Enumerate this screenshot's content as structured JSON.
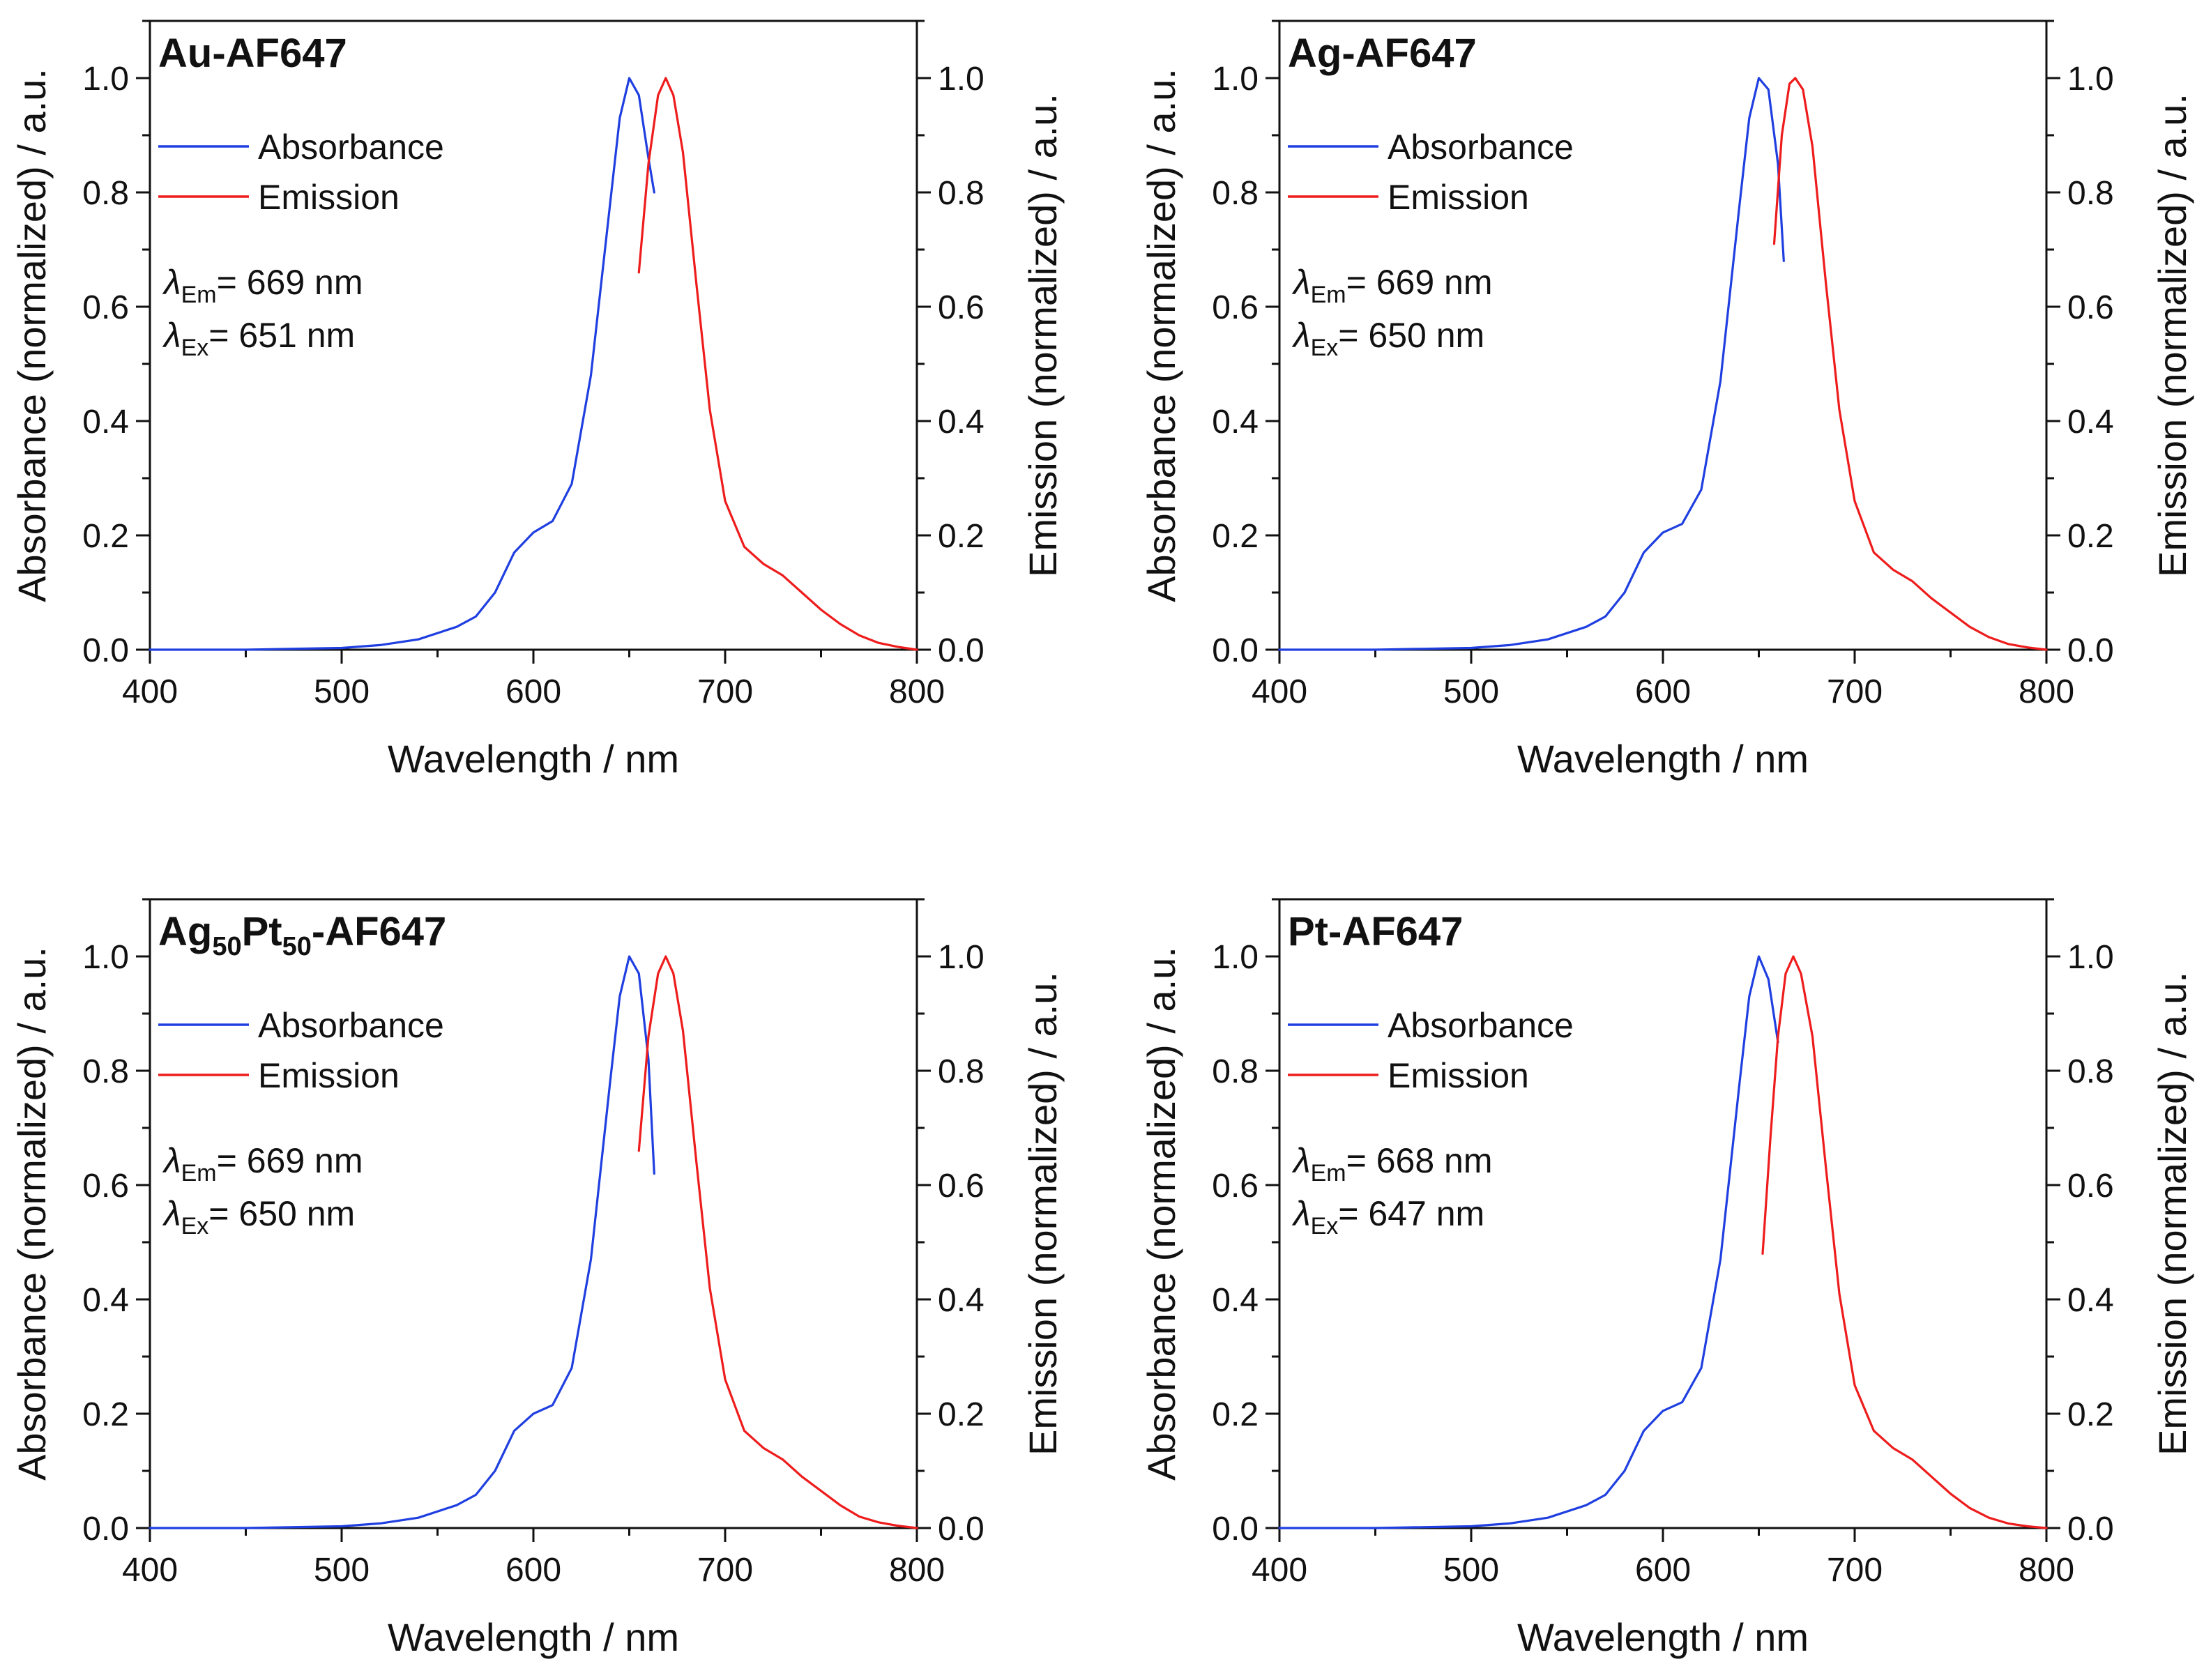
{
  "colors": {
    "absorbance": "#1f3fe0",
    "emission": "#ee1c1c"
  },
  "chart_data": [
    {
      "type": "line",
      "title": "Au-AF647",
      "title_sub": "",
      "xlabel": "Wavelength / nm",
      "ylabel": "Absorbance (normalized) / a.u.",
      "ylabel_right": "Emission (normalized) / a.u.",
      "xlim": [
        400,
        800
      ],
      "ylim": [
        0,
        1.1
      ],
      "x_ticks": [
        "400",
        "500",
        "600",
        "700",
        "800"
      ],
      "y_ticks": [
        "0.0",
        "0.2",
        "0.4",
        "0.6",
        "0.8",
        "1.0"
      ],
      "legend": [
        "Absorbance",
        "Emission"
      ],
      "legend_position": "top-left",
      "annotation": {
        "em_symbol": "λ",
        "em_sub": "Em",
        "em_value": "= 669 nm",
        "ex_symbol": "λ",
        "ex_sub": "Ex",
        "ex_value": "= 651 nm"
      },
      "series": [
        {
          "name": "Absorbance",
          "axis": "left",
          "x": [
            400,
            450,
            500,
            520,
            540,
            560,
            570,
            580,
            590,
            600,
            610,
            620,
            630,
            640,
            645,
            650,
            655,
            660,
            663
          ],
          "y": [
            0.0,
            0.0,
            0.003,
            0.008,
            0.018,
            0.04,
            0.058,
            0.1,
            0.17,
            0.205,
            0.225,
            0.29,
            0.48,
            0.78,
            0.93,
            1.0,
            0.97,
            0.86,
            0.8
          ]
        },
        {
          "name": "Emission",
          "axis": "right",
          "x": [
            655,
            660,
            665,
            669,
            673,
            678,
            685,
            692,
            700,
            710,
            720,
            730,
            740,
            750,
            760,
            770,
            780,
            790,
            800
          ],
          "y": [
            0.66,
            0.85,
            0.97,
            1.0,
            0.97,
            0.87,
            0.64,
            0.42,
            0.26,
            0.18,
            0.15,
            0.13,
            0.1,
            0.07,
            0.045,
            0.025,
            0.012,
            0.005,
            0.0
          ]
        }
      ]
    },
    {
      "type": "line",
      "title": "Ag-AF647",
      "title_sub": "",
      "xlabel": "Wavelength / nm",
      "ylabel": "Absorbance (normalized) / a.u.",
      "ylabel_right": "Emission (normalized) / a.u.",
      "xlim": [
        400,
        800
      ],
      "ylim": [
        0,
        1.1
      ],
      "x_ticks": [
        "400",
        "500",
        "600",
        "700",
        "800"
      ],
      "y_ticks": [
        "0.0",
        "0.2",
        "0.4",
        "0.6",
        "0.8",
        "1.0"
      ],
      "legend": [
        "Absorbance",
        "Emission"
      ],
      "legend_position": "top-left",
      "annotation": {
        "em_symbol": "λ",
        "em_sub": "Em",
        "em_value": "= 669 nm",
        "ex_symbol": "λ",
        "ex_sub": "Ex",
        "ex_value": "= 650 nm"
      },
      "series": [
        {
          "name": "Absorbance",
          "axis": "left",
          "x": [
            400,
            450,
            500,
            520,
            540,
            560,
            570,
            580,
            590,
            600,
            610,
            620,
            630,
            640,
            645,
            650,
            655,
            660,
            663
          ],
          "y": [
            0.0,
            0.0,
            0.003,
            0.008,
            0.018,
            0.04,
            0.058,
            0.1,
            0.17,
            0.205,
            0.22,
            0.28,
            0.47,
            0.78,
            0.93,
            1.0,
            0.98,
            0.85,
            0.68
          ]
        },
        {
          "name": "Emission",
          "axis": "right",
          "x": [
            658,
            662,
            666,
            669,
            673,
            678,
            685,
            692,
            700,
            710,
            720,
            730,
            740,
            750,
            760,
            770,
            780,
            790,
            800
          ],
          "y": [
            0.71,
            0.9,
            0.99,
            1.0,
            0.98,
            0.88,
            0.64,
            0.42,
            0.26,
            0.17,
            0.14,
            0.12,
            0.09,
            0.065,
            0.04,
            0.022,
            0.01,
            0.004,
            0.0
          ]
        }
      ]
    },
    {
      "type": "line",
      "title": "Ag",
      "title_sub": "50",
      "title_parts": [
        "Ag",
        "50",
        "Pt",
        "50",
        "-AF647"
      ],
      "xlabel": "Wavelength / nm",
      "ylabel": "Absorbance (normalized) / a.u.",
      "ylabel_right": "Emission (normalized) / a.u.",
      "xlim": [
        400,
        800
      ],
      "ylim": [
        0,
        1.1
      ],
      "x_ticks": [
        "400",
        "500",
        "600",
        "700",
        "800"
      ],
      "y_ticks": [
        "0.0",
        "0.2",
        "0.4",
        "0.6",
        "0.8",
        "1.0"
      ],
      "legend": [
        "Absorbance",
        "Emission"
      ],
      "legend_position": "top-left",
      "annotation": {
        "em_symbol": "λ",
        "em_sub": "Em",
        "em_value": "= 669 nm",
        "ex_symbol": "λ",
        "ex_sub": "Ex",
        "ex_value": "= 650 nm"
      },
      "series": [
        {
          "name": "Absorbance",
          "axis": "left",
          "x": [
            400,
            450,
            500,
            520,
            540,
            560,
            570,
            580,
            590,
            600,
            610,
            620,
            630,
            640,
            645,
            650,
            655,
            660,
            663
          ],
          "y": [
            0.0,
            0.0,
            0.003,
            0.008,
            0.018,
            0.04,
            0.058,
            0.1,
            0.17,
            0.2,
            0.215,
            0.28,
            0.47,
            0.78,
            0.93,
            1.0,
            0.97,
            0.82,
            0.62
          ]
        },
        {
          "name": "Emission",
          "axis": "right",
          "x": [
            655,
            660,
            665,
            669,
            673,
            678,
            685,
            692,
            700,
            710,
            720,
            730,
            740,
            750,
            760,
            770,
            780,
            790,
            800
          ],
          "y": [
            0.66,
            0.86,
            0.97,
            1.0,
            0.97,
            0.87,
            0.64,
            0.42,
            0.26,
            0.17,
            0.14,
            0.12,
            0.09,
            0.065,
            0.04,
            0.02,
            0.01,
            0.004,
            0.0
          ]
        }
      ]
    },
    {
      "type": "line",
      "title": "Pt-AF647",
      "title_sub": "",
      "xlabel": "Wavelength / nm",
      "ylabel": "Absorbance (normalized) / a.u.",
      "ylabel_right": "Emission (normalized) / a.u.",
      "xlim": [
        400,
        800
      ],
      "ylim": [
        0,
        1.1
      ],
      "x_ticks": [
        "400",
        "500",
        "600",
        "700",
        "800"
      ],
      "y_ticks": [
        "0.0",
        "0.2",
        "0.4",
        "0.6",
        "0.8",
        "1.0"
      ],
      "legend": [
        "Absorbance",
        "Emission"
      ],
      "legend_position": "top-left",
      "annotation": {
        "em_symbol": "λ",
        "em_sub": "Em",
        "em_value": "= 668 nm",
        "ex_symbol": "λ",
        "ex_sub": "Ex",
        "ex_value": "= 647 nm"
      },
      "series": [
        {
          "name": "Absorbance",
          "axis": "left",
          "x": [
            400,
            450,
            500,
            520,
            540,
            560,
            570,
            580,
            590,
            600,
            610,
            620,
            630,
            640,
            645,
            650,
            655,
            660
          ],
          "y": [
            0.0,
            0.0,
            0.003,
            0.008,
            0.018,
            0.04,
            0.058,
            0.1,
            0.17,
            0.205,
            0.22,
            0.28,
            0.47,
            0.78,
            0.93,
            1.0,
            0.96,
            0.85
          ]
        },
        {
          "name": "Emission",
          "axis": "right",
          "x": [
            652,
            656,
            660,
            664,
            668,
            672,
            678,
            685,
            692,
            700,
            710,
            720,
            730,
            740,
            750,
            760,
            770,
            780,
            790,
            800
          ],
          "y": [
            0.48,
            0.68,
            0.86,
            0.97,
            1.0,
            0.97,
            0.86,
            0.63,
            0.41,
            0.25,
            0.17,
            0.14,
            0.12,
            0.09,
            0.06,
            0.035,
            0.018,
            0.008,
            0.003,
            0.0
          ]
        }
      ]
    }
  ]
}
